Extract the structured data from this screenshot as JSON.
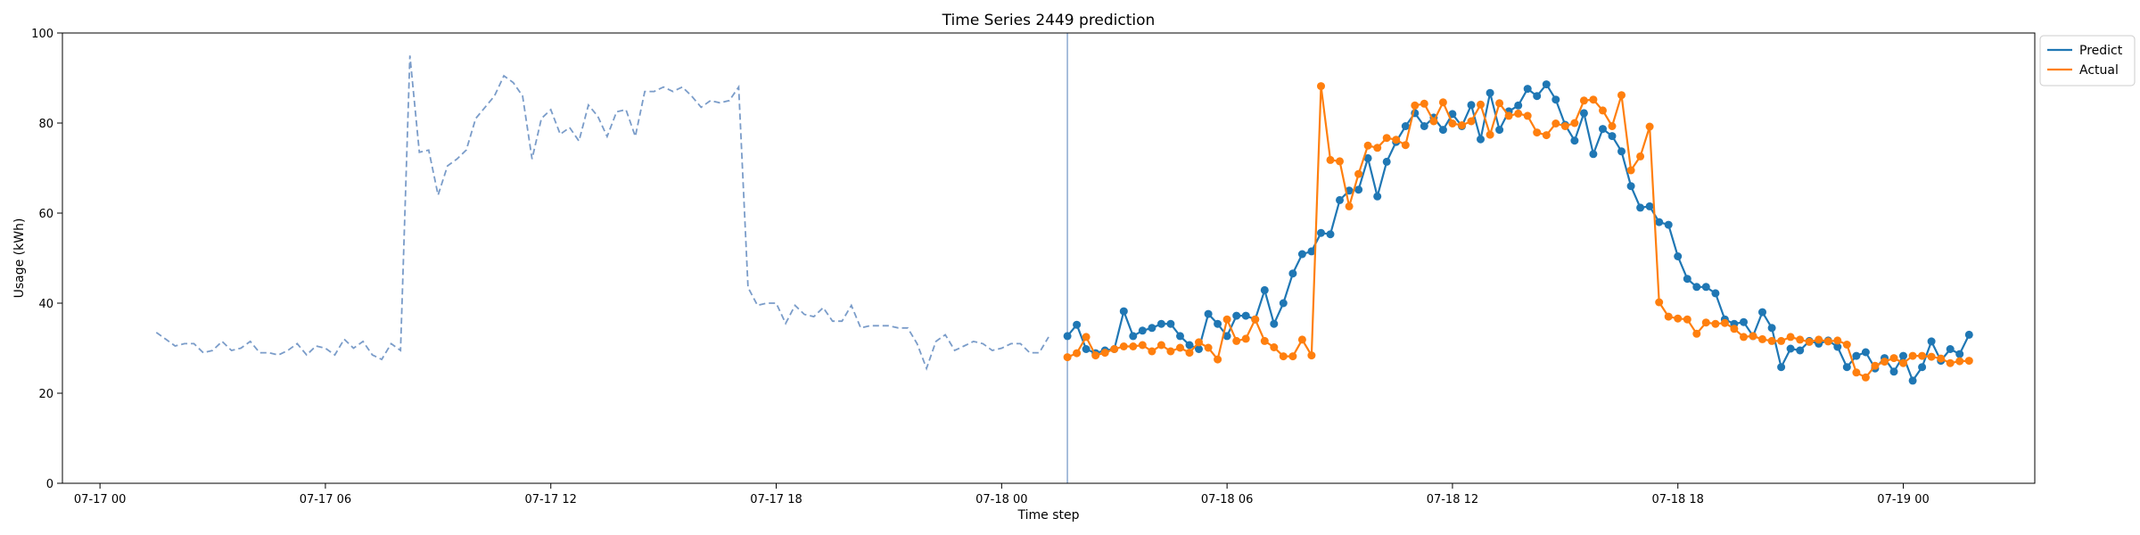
{
  "chart_data": {
    "type": "line",
    "title": "Time Series 2449 prediction",
    "xlabel": "Time step",
    "ylabel": "Usage (kWh)",
    "ylim": [
      0,
      100
    ],
    "xlim_hours": [
      -1,
      51.5
    ],
    "yticks": [
      0,
      20,
      40,
      60,
      80,
      100
    ],
    "xticks": [
      {
        "hour": 0,
        "label": "07-17 00"
      },
      {
        "hour": 6,
        "label": "07-17 06"
      },
      {
        "hour": 12,
        "label": "07-17 12"
      },
      {
        "hour": 18,
        "label": "07-17 18"
      },
      {
        "hour": 24,
        "label": "07-18 00"
      },
      {
        "hour": 30,
        "label": "07-18 06"
      },
      {
        "hour": 36,
        "label": "07-18 12"
      },
      {
        "hour": 42,
        "label": "07-18 18"
      },
      {
        "hour": 48,
        "label": "07-19 00"
      }
    ],
    "step_hours": 0.25,
    "history_start_hour": 1.5,
    "forecast_start_hour": 25.75,
    "legend": {
      "placement": "top-right outside"
    },
    "grid": false,
    "series": [
      {
        "name": "",
        "style": "dashed",
        "color": "#7a9cc9",
        "values": [
          33.5,
          32,
          30.5,
          31,
          31,
          29,
          29.5,
          31.5,
          29.5,
          30,
          31.5,
          29,
          29,
          28.5,
          29.5,
          31,
          28.5,
          30.5,
          30,
          28.5,
          32,
          30,
          31.5,
          28.5,
          27.5,
          31,
          29.5,
          95,
          73.5,
          74,
          64,
          70.5,
          72,
          74,
          81,
          83.5,
          86,
          90.5,
          89,
          86,
          72,
          81,
          83,
          77.5,
          79,
          76,
          84,
          81.5,
          77,
          82.5,
          83,
          77,
          87,
          87,
          88,
          87,
          88,
          86,
          83.5,
          85,
          84.5,
          85,
          88,
          43.5,
          39.5,
          40,
          40,
          35.5,
          39.5,
          37.5,
          37,
          39,
          36,
          36,
          39.5,
          34.5,
          35,
          35,
          35,
          34.5,
          34.5,
          31,
          25.5,
          31.5,
          33,
          29.5,
          30.5,
          31.5,
          31,
          29.5,
          30,
          31,
          31,
          29,
          29,
          32.5
        ]
      },
      {
        "name": "Predict",
        "style": "solid-markers",
        "color": "#1f77b4",
        "values": [
          32.7,
          35.2,
          29.8,
          28.9,
          29.5,
          29.8,
          38.2,
          32.7,
          33.9,
          34.5,
          35.4,
          35.4,
          32.7,
          30.7,
          29.8,
          37.6,
          35.4,
          32.7,
          37.2,
          37.2,
          36.4,
          42.9,
          35.4,
          40,
          46.6,
          50.9,
          51.5,
          55.6,
          55.3,
          62.9,
          65,
          65.2,
          72.2,
          63.7,
          71.4,
          75.8,
          79.3,
          82.2,
          79.3,
          81.2,
          78.5,
          82,
          79.3,
          84,
          76.4,
          86.7,
          78.5,
          82.6,
          83.9,
          87.6,
          86,
          88.6,
          85.2,
          79.6,
          76.1,
          82.2,
          73.1,
          78.7,
          77.1,
          73.7,
          66,
          61.2,
          61.5,
          58,
          57.4,
          50.4,
          45.4,
          43.6,
          43.6,
          42.2,
          36.4,
          35.4,
          35.8,
          32.7,
          38,
          34.5,
          25.8,
          29.9,
          29.5,
          31.6,
          31,
          31.7,
          30.3,
          25.8,
          28.3,
          29.1,
          25.5,
          27.8,
          24.8,
          28.3,
          22.8,
          25.8,
          31.5,
          27.2,
          29.8,
          28.7,
          33
        ]
      },
      {
        "name": "Actual",
        "style": "solid-markers",
        "color": "#ff7f0e",
        "values": [
          28,
          28.9,
          32.5,
          28.4,
          29,
          29.8,
          30.4,
          30.4,
          30.7,
          29.3,
          30.7,
          29.3,
          30.1,
          29,
          31.3,
          30.1,
          27.5,
          36.4,
          31.6,
          32.1,
          36.4,
          31.6,
          30.2,
          28.2,
          28.2,
          31.9,
          28.4,
          88.2,
          71.8,
          71.5,
          61.5,
          68.7,
          75,
          74.5,
          76.7,
          76.3,
          75.1,
          83.9,
          84.3,
          80.4,
          84.6,
          79.9,
          79.5,
          80.4,
          84.1,
          77.4,
          84.4,
          81.6,
          82.1,
          81.6,
          77.9,
          77.3,
          79.9,
          79.3,
          80,
          85,
          85.2,
          82.8,
          79.3,
          86.2,
          69.5,
          72.6,
          79.2,
          40.2,
          37,
          36.6,
          36.4,
          33.2,
          35.7,
          35.4,
          35.6,
          34.3,
          32.5,
          32.7,
          32,
          31.6,
          31.6,
          32.5,
          31.9,
          31.4,
          31.9,
          31.5,
          31.7,
          30.8,
          24.6,
          23.5,
          26.1,
          27,
          27.8,
          26.7,
          28.3,
          28.3,
          28.1,
          27.7,
          26.7,
          27.1,
          27.2
        ]
      }
    ]
  }
}
